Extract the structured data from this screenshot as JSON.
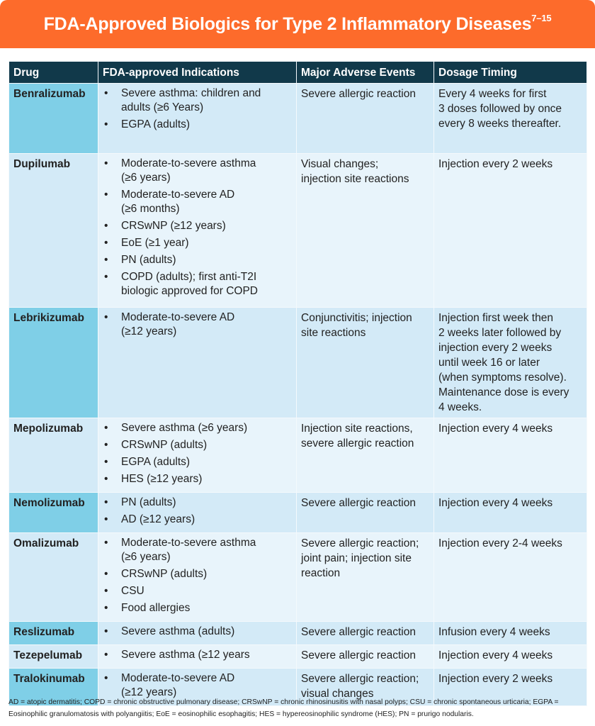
{
  "title": "FDA-Approved Biologics for Type 2 Inflammatory Diseases",
  "title_refs": "7–15",
  "colors": {
    "banner": "#fd6b2b",
    "header": "#11394a",
    "drug_cell_dark": "#7fcfe7",
    "row_dark": "#d3eaf7",
    "row_light": "#e8f4fb"
  },
  "columns": [
    "Drug",
    "FDA-approved Indications",
    "Major Adverse Events",
    "Dosage Timing"
  ],
  "rows": [
    {
      "drug": "Benralizumab",
      "indications": [
        "Severe asthma: children and\nadults (≥6 Years)",
        "EGPA (adults)"
      ],
      "adverse": "Severe allergic reaction",
      "dosage": "Every 4 weeks for first\n3 doses followed by once\nevery 8 weeks thereafter."
    },
    {
      "drug": "Dupilumab",
      "indications": [
        "Moderate-to-severe asthma\n(≥6 years)",
        "Moderate-to-severe AD\n(≥6 months)",
        "CRSwNP (≥12 years)",
        "EoE (≥1 year)",
        "PN (adults)",
        "COPD (adults); first anti-T2I\nbiologic approved for COPD"
      ],
      "adverse": "Visual changes;\ninjection site reactions",
      "dosage": "Injection every 2 weeks"
    },
    {
      "drug": "Lebrikizumab",
      "indications": [
        "Moderate-to-severe AD\n(≥12 years)"
      ],
      "adverse": "Conjunctivitis; injection\nsite reactions",
      "dosage": "Injection first week then\n2 weeks later followed by\ninjection every 2 weeks\nuntil week 16 or later\n(when symptoms resolve).\nMaintenance dose is every\n4 weeks."
    },
    {
      "drug": "Mepolizumab",
      "indications": [
        "Severe asthma (≥6 years)",
        "CRSwNP (adults)",
        "EGPA (adults)",
        "HES (≥12 years)"
      ],
      "adverse": "Injection site reactions,\nsevere allergic reaction",
      "dosage": "Injection every 4 weeks"
    },
    {
      "drug": "Nemolizumab",
      "indications": [
        "PN (adults)",
        "AD (≥12 years)"
      ],
      "adverse": "Severe allergic reaction",
      "dosage": "Injection every 4 weeks"
    },
    {
      "drug": "Omalizumab",
      "indications": [
        "Moderate-to-severe asthma\n(≥6 years)",
        "CRSwNP (adults)",
        "CSU",
        "Food allergies"
      ],
      "adverse": "Severe allergic reaction;\njoint pain; injection site\nreaction",
      "dosage": "Injection every 2-4 weeks"
    },
    {
      "drug": "Reslizumab",
      "indications": [
        "Severe asthma (adults)"
      ],
      "adverse": "Severe allergic reaction",
      "dosage": "Infusion every 4 weeks"
    },
    {
      "drug": "Tezepelumab",
      "indications": [
        "Severe asthma (≥12 years"
      ],
      "adverse": "Severe allergic reaction",
      "dosage": "Injection every 4 weeks"
    },
    {
      "drug": "Tralokinumab",
      "indications": [
        "Moderate-to-severe AD\n(≥12 years)"
      ],
      "adverse": "Severe allergic reaction;\nvisual changes",
      "dosage": "Injection every 2 weeks"
    }
  ],
  "footnote": "AD = atopic dermatitis; COPD = chronic obstructive pulmonary disease; CRSwNP = chronic rhinosinusitis with nasal polyps; CSU = chronic spontaneous urticaria; EGPA = Eosinophilic granulomatosis with polyangiitis; EoE = eosinophilic esophagitis; HES = hypereosinophilic syndrome (HES); PN = prurigo nodularis."
}
